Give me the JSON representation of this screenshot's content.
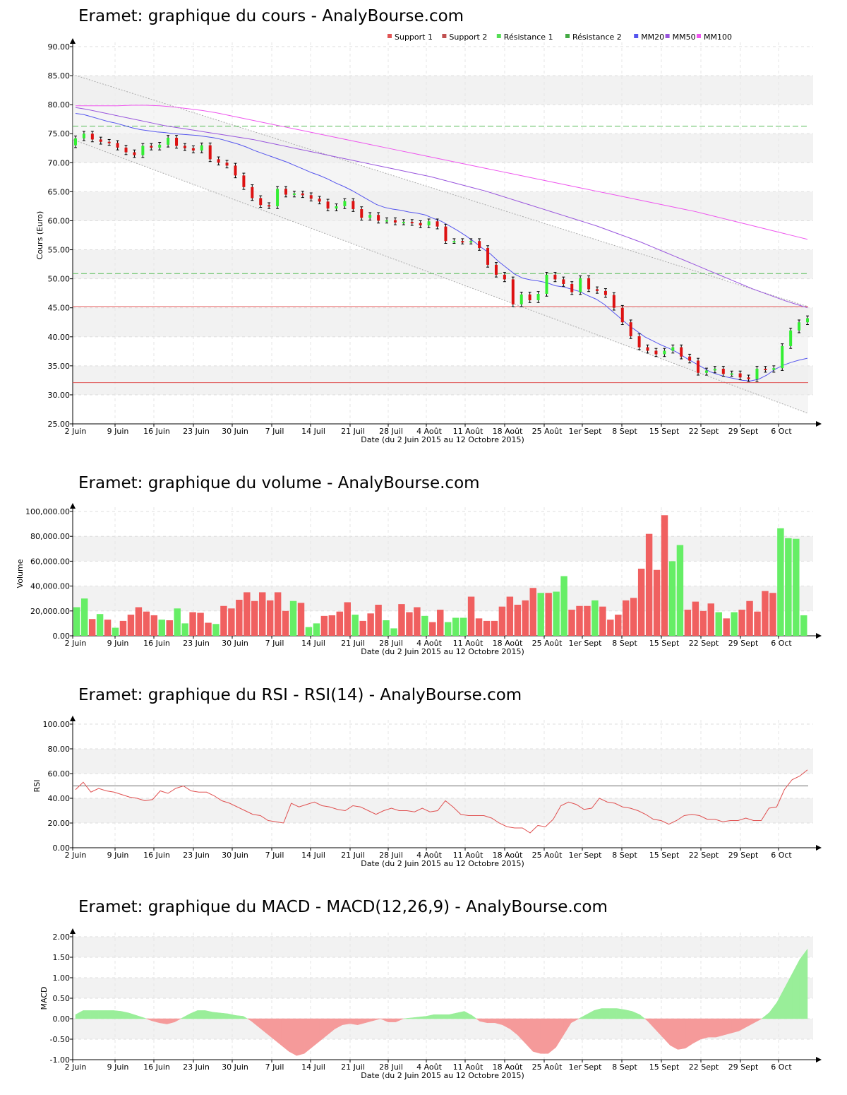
{
  "x_tick_labels": [
    "2 Juin",
    "9 Juin",
    "16 Juin",
    "23 Juin",
    "30 Juin",
    "7 Juil",
    "14 Juil",
    "21 Juil",
    "28 Juil",
    "4 Août",
    "11 Août",
    "18 Août",
    "25 Août",
    "1er Sept",
    "8 Sept",
    "15 Sept",
    "22 Sept",
    "29 Sept",
    "6 Oct"
  ],
  "date_label": "Date (du 2 Juin 2015 au 12 Octobre 2015)",
  "chart_data": [
    {
      "type": "candlestick",
      "title": "Eramet: graphique du cours - AnalyBourse.com",
      "ylabel": "Cours (Euro)",
      "ylim": [
        25,
        90
      ],
      "yticks": [
        "25.00",
        "30.00",
        "35.00",
        "40.00",
        "45.00",
        "50.00",
        "55.00",
        "60.00",
        "65.00",
        "70.00",
        "75.00",
        "80.00",
        "85.00",
        "90.00"
      ],
      "legend": [
        {
          "name": "Support 1",
          "color": "#e05555"
        },
        {
          "name": "Support 2",
          "color": "#c05050"
        },
        {
          "name": "Résistance 1",
          "color": "#55dd55"
        },
        {
          "name": "Résistance 2",
          "color": "#44aa44"
        },
        {
          "name": "MM20",
          "color": "#5555ee"
        },
        {
          "name": "MM50",
          "color": "#9955dd"
        },
        {
          "name": "MM100",
          "color": "#ee55ee"
        }
      ],
      "legend_position": "top-right",
      "support_levels": [
        45.2,
        32.1
      ],
      "resistance_levels": [
        76.3,
        50.9
      ],
      "trend_channel": {
        "upper": [
          85.2,
          45.2
        ],
        "lower": [
          74.0,
          26.8
        ]
      },
      "closes": [
        74.2,
        75.0,
        74.0,
        73.6,
        73.4,
        72.6,
        71.8,
        71.3,
        72.9,
        72.6,
        73.1,
        74.3,
        72.9,
        72.5,
        72.1,
        73.0,
        70.6,
        70.0,
        69.5,
        67.8,
        65.8,
        63.9,
        62.7,
        62.5,
        65.5,
        64.5,
        64.7,
        64.4,
        63.8,
        63.3,
        62.1,
        62.5,
        63.4,
        62.0,
        60.5,
        61.0,
        60.0,
        60.1,
        59.7,
        59.8,
        59.6,
        59.2,
        59.9,
        59.0,
        56.5,
        56.5,
        56.4,
        56.5,
        55.3,
        52.4,
        50.7,
        49.9,
        45.6,
        47.3,
        46.3,
        47.4,
        50.7,
        49.9,
        49.1,
        47.7,
        50.1,
        48.2,
        47.9,
        47.2,
        45.0,
        42.5,
        40.1,
        38.2,
        37.6,
        37.0,
        37.6,
        38.2,
        36.6,
        35.9,
        33.8,
        34.2,
        34.5,
        33.6,
        33.7,
        33.0,
        32.7,
        34.5,
        34.3,
        34.6,
        38.4,
        41.1,
        42.5,
        43.2
      ],
      "ma20": [
        78.5,
        78.3,
        77.9,
        77.5,
        77.1,
        76.8,
        76.4,
        76.0,
        75.7,
        75.5,
        75.3,
        75.2,
        75.0,
        74.9,
        74.8,
        74.7,
        74.5,
        74.3,
        74.0,
        73.6,
        73.2,
        72.7,
        72.1,
        71.6,
        71.1,
        70.6,
        70.1,
        69.5,
        68.9,
        68.3,
        67.8,
        67.2,
        66.5,
        65.9,
        65.2,
        64.4,
        63.6,
        62.8,
        62.3,
        62.0,
        61.8,
        61.5,
        61.3,
        61.0,
        60.4,
        59.9,
        59.1,
        58.3,
        57.4,
        56.4,
        55.3,
        54.3,
        53.0,
        51.9,
        50.8,
        50.1,
        49.8,
        49.6,
        49.3,
        48.8,
        48.6,
        48.2,
        47.8,
        47.1,
        46.5,
        45.6,
        44.4,
        43.2,
        42.0,
        41.0,
        40.0,
        39.3,
        38.6,
        38.0,
        37.3,
        36.4,
        35.6,
        34.8,
        34.0,
        33.5,
        33.1,
        32.8,
        32.5,
        32.4,
        32.7,
        33.4,
        34.4,
        35.1,
        35.6,
        36.0,
        36.3
      ],
      "ma50": [
        79.5,
        79.2,
        78.8,
        78.4,
        78.0,
        77.6,
        77.2,
        76.8,
        76.4,
        76.1,
        75.8,
        75.5,
        75.2,
        74.9,
        74.6,
        74.3,
        74.0,
        73.6,
        73.2,
        72.8,
        72.4,
        72.0,
        71.6,
        71.2,
        70.8,
        70.4,
        70.0,
        69.6,
        69.2,
        68.8,
        68.4,
        68.0,
        67.6,
        67.1,
        66.6,
        66.1,
        65.6,
        65.1,
        64.5,
        63.9,
        63.3,
        62.7,
        62.1,
        61.5,
        60.9,
        60.3,
        59.7,
        59.1,
        58.4,
        57.7,
        57.0,
        56.3,
        55.5,
        54.7,
        53.9,
        53.1,
        52.3,
        51.5,
        50.7,
        49.9,
        49.1,
        48.3,
        47.6,
        46.9,
        46.2,
        45.6,
        45.0
      ],
      "ma100": [
        79.8,
        79.8,
        79.8,
        79.8,
        79.9,
        79.9,
        79.8,
        79.6,
        79.3,
        79.0,
        78.6,
        78.1,
        77.6,
        77.1,
        76.6,
        76.1,
        75.6,
        75.1,
        74.6,
        74.1,
        73.6,
        73.1,
        72.6,
        72.1,
        71.6,
        71.1,
        70.6,
        70.1,
        69.6,
        69.1,
        68.6,
        68.1,
        67.6,
        67.1,
        66.6,
        66.1,
        65.6,
        65.1,
        64.6,
        64.1,
        63.6,
        63.1,
        62.6,
        62.1,
        61.6,
        61.0,
        60.4,
        59.8,
        59.2,
        58.6,
        58.0,
        57.4,
        56.8
      ]
    },
    {
      "type": "bar",
      "title": "Eramet: graphique du volume - AnalyBourse.com",
      "ylabel": "Volume",
      "ylim": [
        0,
        100000
      ],
      "yticks": [
        "0.00",
        "20,000.00",
        "40,000.00",
        "60,000.00",
        "80,000.00",
        "100,000.00"
      ],
      "values": [
        23000,
        30000,
        13500,
        17500,
        13000,
        6500,
        12000,
        17000,
        23000,
        19500,
        16500,
        13000,
        12500,
        22000,
        10000,
        19000,
        18500,
        10500,
        9500,
        24000,
        22000,
        29000,
        35000,
        28000,
        35000,
        28500,
        35000,
        20000,
        28000,
        26500,
        7000,
        10000,
        16000,
        16500,
        19500,
        27000,
        17000,
        12000,
        18000,
        25000,
        12500,
        6000,
        25500,
        19000,
        23000,
        16000,
        11000,
        21000,
        11000,
        14500,
        14500,
        31500,
        14000,
        12000,
        12000,
        23500,
        31500,
        25000,
        28500,
        38500,
        34500,
        34500,
        35500,
        48000,
        21000,
        24000,
        24000,
        28500,
        23500,
        13000,
        17000,
        28500,
        30500,
        54000,
        82000,
        53000,
        97000,
        60000,
        73000,
        21000,
        27500,
        20000,
        26000,
        19000,
        14000,
        19000,
        21000,
        28000,
        19500,
        36000,
        34500,
        86500,
        78500,
        78000,
        16500
      ],
      "colors": [
        "#66ee66",
        "#66ee66",
        "#f06060",
        "#66ee66",
        "#f06060",
        "#66ee66",
        "#f06060",
        "#f06060",
        "#f06060",
        "#f06060",
        "#f06060",
        "#66ee66",
        "#f06060",
        "#66ee66",
        "#66ee66",
        "#f06060",
        "#f06060",
        "#f06060",
        "#66ee66",
        "#f06060",
        "#f06060",
        "#f06060",
        "#f06060",
        "#f06060",
        "#f06060",
        "#f06060",
        "#f06060",
        "#f06060",
        "#66ee66",
        "#f06060",
        "#66ee66",
        "#66ee66",
        "#f06060",
        "#f06060",
        "#f06060",
        "#f06060",
        "#66ee66",
        "#f06060",
        "#f06060",
        "#f06060",
        "#66ee66",
        "#66ee66",
        "#f06060",
        "#f06060",
        "#f06060",
        "#66ee66",
        "#f06060",
        "#f06060",
        "#66ee66",
        "#66ee66",
        "#66ee66",
        "#f06060",
        "#f06060",
        "#f06060",
        "#f06060",
        "#f06060",
        "#f06060",
        "#f06060",
        "#f06060",
        "#f06060",
        "#66ee66",
        "#f06060",
        "#66ee66",
        "#66ee66",
        "#f06060",
        "#f06060",
        "#f06060",
        "#66ee66",
        "#f06060",
        "#f06060",
        "#f06060",
        "#f06060",
        "#f06060",
        "#f06060",
        "#f06060",
        "#f06060",
        "#f06060",
        "#66ee66",
        "#66ee66",
        "#f06060",
        "#f06060",
        "#f06060",
        "#f06060",
        "#66ee66",
        "#f06060",
        "#66ee66",
        "#f06060",
        "#f06060",
        "#f06060",
        "#f06060",
        "#f06060",
        "#66ee66",
        "#66ee66",
        "#66ee66",
        "#66ee66"
      ]
    },
    {
      "type": "line",
      "title": "Eramet: graphique du RSI - RSI(14) - AnalyBourse.com",
      "ylabel": "RSI",
      "ylim": [
        0,
        100
      ],
      "yticks": [
        "0.00",
        "20.00",
        "40.00",
        "60.00",
        "80.00",
        "100.00"
      ],
      "reference": 50,
      "values": [
        47,
        53,
        45,
        48,
        46,
        45,
        43,
        41,
        40,
        38,
        39,
        46,
        44,
        48,
        50,
        46,
        45,
        45,
        42,
        38,
        36,
        33,
        30,
        27,
        26,
        22,
        21,
        20,
        36,
        33,
        35,
        37,
        34,
        33,
        31,
        30,
        34,
        33,
        30,
        27,
        30,
        32,
        30,
        30,
        29,
        32,
        29,
        30,
        38,
        33,
        27,
        26,
        26,
        26,
        24,
        20,
        17,
        16,
        16,
        12,
        18,
        17,
        23,
        34,
        37,
        35,
        31,
        32,
        40,
        37,
        36,
        33,
        32,
        30,
        27,
        23,
        22,
        19,
        22,
        26,
        27,
        26,
        23,
        23,
        21,
        22,
        22,
        24,
        22,
        22,
        32,
        33,
        47,
        55,
        58,
        63
      ],
      "line_color": "#e05050"
    },
    {
      "type": "area",
      "title": "Eramet: graphique du MACD - MACD(12,26,9) - AnalyBourse.com",
      "ylabel": "MACD",
      "ylim": [
        -1,
        2
      ],
      "yticks": [
        "-1.00",
        "-0.50",
        "0.00",
        "0.50",
        "1.00",
        "1.50",
        "2.00"
      ],
      "values": [
        0.1,
        0.2,
        0.2,
        0.2,
        0.2,
        0.2,
        0.18,
        0.14,
        0.08,
        0.02,
        -0.05,
        -0.1,
        -0.13,
        -0.08,
        0.02,
        0.12,
        0.2,
        0.2,
        0.16,
        0.14,
        0.12,
        0.08,
        0.06,
        -0.05,
        -0.2,
        -0.35,
        -0.5,
        -0.65,
        -0.8,
        -0.9,
        -0.85,
        -0.7,
        -0.55,
        -0.4,
        -0.25,
        -0.15,
        -0.12,
        -0.15,
        -0.1,
        -0.05,
        0.0,
        -0.08,
        -0.08,
        0.0,
        0.02,
        0.04,
        0.06,
        0.1,
        0.1,
        0.1,
        0.14,
        0.18,
        0.08,
        -0.06,
        -0.1,
        -0.1,
        -0.15,
        -0.25,
        -0.4,
        -0.6,
        -0.8,
        -0.85,
        -0.85,
        -0.7,
        -0.4,
        -0.1,
        0.0,
        0.1,
        0.2,
        0.25,
        0.25,
        0.25,
        0.22,
        0.18,
        0.1,
        -0.05,
        -0.25,
        -0.45,
        -0.65,
        -0.75,
        -0.72,
        -0.6,
        -0.5,
        -0.45,
        -0.45,
        -0.4,
        -0.35,
        -0.3,
        -0.2,
        -0.1,
        0.0,
        0.15,
        0.4,
        0.75,
        1.1,
        1.45,
        1.7
      ],
      "pos_color": "#99ee99",
      "neg_color": "#f59a9a"
    }
  ]
}
